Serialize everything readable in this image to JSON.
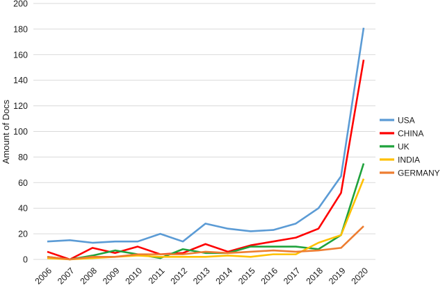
{
  "chart_data": {
    "type": "line",
    "title": "",
    "xlabel": "",
    "ylabel": "Amount of Docs",
    "ylim": [
      0,
      200
    ],
    "ytick_step": 20,
    "grid": true,
    "legend_position": "right",
    "grid_color": "#d9d9d9",
    "text_color": "#1c1c1c",
    "categories": [
      "2006",
      "2007",
      "2008",
      "2009",
      "2010",
      "2011",
      "2012",
      "2013",
      "2014",
      "2015",
      "2016",
      "2017",
      "2018",
      "2019",
      "2020"
    ],
    "series": [
      {
        "name": "USA",
        "color": "#5b9bd5",
        "values": [
          14,
          15,
          13,
          14,
          14,
          20,
          14,
          28,
          24,
          22,
          23,
          28,
          40,
          65,
          181
        ]
      },
      {
        "name": "CHINA",
        "color": "#fe0000",
        "values": [
          6,
          0,
          9,
          5,
          10,
          4,
          5,
          12,
          6,
          11,
          14,
          17,
          24,
          52,
          156
        ]
      },
      {
        "name": "UK",
        "color": "#1fa23c",
        "values": [
          2,
          0,
          3,
          7,
          4,
          1,
          8,
          5,
          5,
          10,
          10,
          10,
          8,
          19,
          75
        ]
      },
      {
        "name": "INDIA",
        "color": "#ffc000",
        "values": [
          1,
          0,
          1,
          2,
          3,
          2,
          2,
          2,
          3,
          2,
          4,
          4,
          13,
          19,
          63
        ]
      },
      {
        "name": "GERMANY",
        "color": "#ed7d31",
        "values": [
          2,
          0,
          2,
          2,
          4,
          4,
          4,
          6,
          5,
          6,
          7,
          6,
          7,
          9,
          26
        ]
      }
    ]
  }
}
